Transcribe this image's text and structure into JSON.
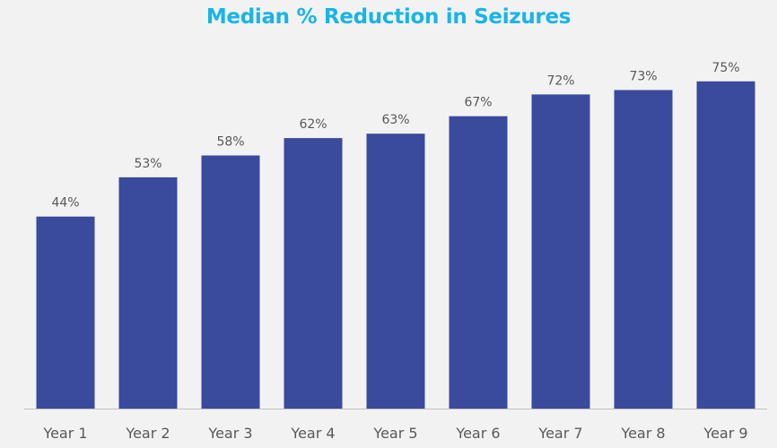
{
  "chart_data": {
    "type": "bar",
    "title": "Median % Reduction in Seizures",
    "categories": [
      "Year 1",
      "Year 2",
      "Year 3",
      "Year 4",
      "Year 5",
      "Year 6",
      "Year 7",
      "Year 8",
      "Year 9"
    ],
    "values": [
      44,
      53,
      58,
      62,
      63,
      67,
      72,
      73,
      75
    ],
    "data_labels": [
      "44%",
      "53%",
      "58%",
      "62%",
      "63%",
      "67%",
      "72%",
      "73%",
      "75%"
    ],
    "xlabel": "",
    "ylabel": "",
    "ylim": [
      0,
      100
    ],
    "grid": false,
    "legend": "none",
    "colors": {
      "bar": "#3a4a9c",
      "title": "#19b4e6",
      "labels": "#595959",
      "axis": "#bfbfbf",
      "background": "#f2f2f2"
    }
  }
}
